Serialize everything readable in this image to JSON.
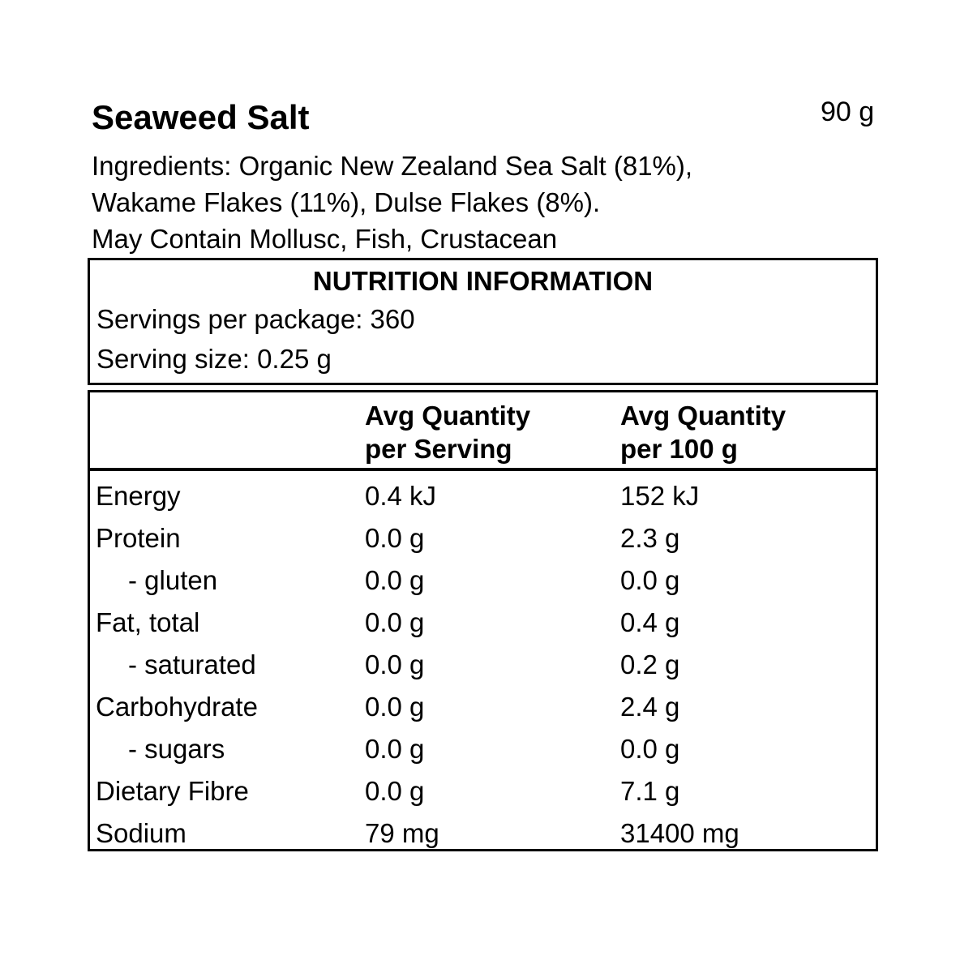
{
  "product": {
    "name": "Seaweed Salt",
    "net_weight": "90 g"
  },
  "ingredients": {
    "line1": "Ingredients: Organic New Zealand Sea Salt (81%),",
    "line2": "Wakame Flakes (11%), Dulse Flakes (8%).",
    "allergen": "May Contain Mollusc, Fish, Crustacean"
  },
  "nutrition": {
    "title": "NUTRITION INFORMATION",
    "servings_per_package": "Servings per package: 360",
    "serving_size": "Serving size: 0.25 g",
    "columns": {
      "per_serving_line1": "Avg Quantity",
      "per_serving_line2": "per Serving",
      "per_100g_line1": "Avg Quantity",
      "per_100g_line2": "per 100 g"
    },
    "rows": [
      {
        "label": "Energy",
        "per_serving": "0.4 kJ",
        "per_100g": "152 kJ"
      },
      {
        "label": "Protein",
        "per_serving": "0.0 g",
        "per_100g": "2.3 g"
      },
      {
        "label": "- gluten",
        "per_serving": "0.0 g",
        "per_100g": "0.0 g"
      },
      {
        "label": "Fat, total",
        "per_serving": "0.0 g",
        "per_100g": "0.4 g"
      },
      {
        "label": "- saturated",
        "per_serving": "0.0 g",
        "per_100g": "0.2 g"
      },
      {
        "label": "Carbohydrate",
        "per_serving": "0.0 g",
        "per_100g": "2.4 g"
      },
      {
        "label": "- sugars",
        "per_serving": "0.0 g",
        "per_100g": "0.0 g"
      },
      {
        "label": "Dietary Fibre",
        "per_serving": "0.0 g",
        "per_100g": "7.1 g"
      },
      {
        "label": "Sodium",
        "per_serving": "79 mg",
        "per_100g": "31400 mg"
      }
    ]
  },
  "colors": {
    "text": "#000000",
    "border": "#000000",
    "background": "#ffffff"
  }
}
